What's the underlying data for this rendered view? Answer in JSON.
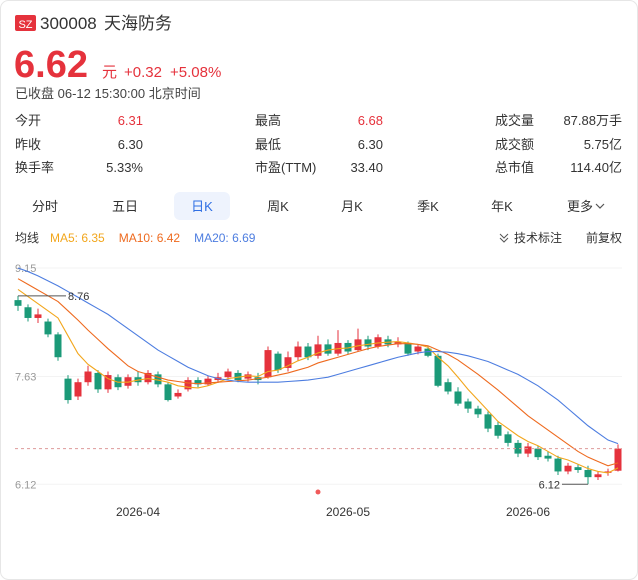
{
  "header": {
    "badge": "SZ",
    "code": "300008",
    "name": "天海防务",
    "price": "6.62",
    "unit": "元",
    "change": "+0.32",
    "change_pct": "+5.08%",
    "status": "已收盘 06-12 15:30:00 北京时间"
  },
  "stats": [
    [
      [
        "今开",
        "6.31"
      ],
      [
        "最高",
        "6.68"
      ],
      [
        "成交量",
        "87.88万手"
      ]
    ],
    [
      [
        "昨收",
        "6.30"
      ],
      [
        "最低",
        "6.30"
      ],
      [
        "成交额",
        "5.75亿"
      ]
    ],
    [
      [
        "换手率",
        "5.33%"
      ],
      [
        "市盈(TTM)",
        "33.40"
      ],
      [
        "总市值",
        "114.40亿"
      ]
    ]
  ],
  "tabs": [
    "分时",
    "五日",
    "日K",
    "周K",
    "月K",
    "季K",
    "年K",
    "更多"
  ],
  "ma_bar": {
    "label": "均线",
    "tech": "技术标注",
    "adjust": "前复权"
  },
  "chart_data": {
    "type": "candlestick",
    "categories": [
      null,
      null,
      null,
      null,
      null,
      null,
      null,
      null,
      null,
      null,
      null,
      null,
      "2026-04",
      null,
      null,
      null,
      null,
      null,
      null,
      null,
      null,
      null,
      null,
      null,
      null,
      null,
      null,
      null,
      null,
      null,
      null,
      null,
      null,
      "2026-05",
      null,
      null,
      null,
      null,
      null,
      null,
      null,
      null,
      null,
      null,
      null,
      null,
      null,
      null,
      null,
      null,
      null,
      "2026-06",
      null,
      null,
      null,
      null,
      null,
      null,
      null,
      null,
      null
    ],
    "open": [
      8.7,
      8.6,
      8.45,
      8.4,
      8.22,
      7.6,
      7.35,
      7.55,
      7.68,
      7.45,
      7.62,
      7.5,
      7.62,
      7.55,
      7.66,
      7.52,
      7.35,
      7.45,
      7.58,
      7.52,
      7.58,
      7.62,
      7.68,
      7.6,
      7.62,
      7.62,
      7.95,
      7.75,
      7.9,
      8.05,
      7.92,
      8.08,
      7.95,
      8.1,
      8.0,
      8.15,
      8.05,
      8.15,
      8.08,
      8.1,
      7.98,
      8.02,
      7.92,
      7.55,
      7.42,
      7.28,
      7.18,
      7.1,
      6.95,
      6.82,
      6.7,
      6.55,
      6.62,
      6.52,
      6.48,
      6.3,
      6.36,
      6.32,
      6.22,
      6.28,
      6.31
    ],
    "close": [
      8.62,
      8.45,
      8.5,
      8.22,
      7.9,
      7.3,
      7.55,
      7.7,
      7.45,
      7.65,
      7.48,
      7.62,
      7.55,
      7.68,
      7.52,
      7.3,
      7.4,
      7.58,
      7.52,
      7.6,
      7.62,
      7.7,
      7.58,
      7.66,
      7.58,
      8.0,
      7.72,
      7.9,
      8.05,
      7.9,
      8.08,
      7.95,
      8.1,
      7.98,
      8.15,
      8.05,
      8.18,
      8.08,
      8.12,
      7.95,
      8.05,
      7.92,
      7.5,
      7.42,
      7.25,
      7.18,
      7.1,
      6.9,
      6.8,
      6.7,
      6.55,
      6.65,
      6.5,
      6.48,
      6.3,
      6.38,
      6.32,
      6.22,
      6.26,
      6.3,
      6.62
    ],
    "high": [
      8.76,
      8.64,
      8.58,
      8.44,
      8.25,
      7.65,
      7.6,
      7.78,
      7.72,
      7.7,
      7.66,
      7.66,
      7.7,
      7.72,
      7.7,
      7.55,
      7.45,
      7.62,
      7.62,
      7.64,
      7.68,
      7.74,
      7.72,
      7.7,
      7.68,
      8.05,
      7.98,
      7.98,
      8.12,
      8.1,
      8.2,
      8.15,
      8.28,
      8.14,
      8.3,
      8.2,
      8.22,
      8.2,
      8.18,
      8.12,
      8.08,
      8.06,
      7.95,
      7.6,
      7.48,
      7.32,
      7.22,
      7.14,
      7.0,
      6.86,
      6.74,
      6.7,
      6.66,
      6.58,
      6.52,
      6.42,
      6.4,
      6.38,
      6.3,
      6.34,
      6.68
    ],
    "low": [
      8.55,
      8.4,
      8.38,
      8.18,
      7.85,
      7.25,
      7.3,
      7.5,
      7.4,
      7.4,
      7.44,
      7.46,
      7.5,
      7.52,
      7.48,
      7.28,
      7.32,
      7.42,
      7.48,
      7.5,
      7.54,
      7.58,
      7.55,
      7.56,
      7.52,
      7.6,
      7.68,
      7.7,
      7.85,
      7.86,
      7.88,
      7.92,
      7.92,
      7.94,
      7.98,
      8.0,
      8.02,
      8.04,
      8.04,
      7.92,
      7.94,
      7.9,
      7.48,
      7.38,
      7.22,
      7.12,
      7.05,
      6.85,
      6.76,
      6.65,
      6.5,
      6.5,
      6.46,
      6.44,
      6.25,
      6.26,
      6.28,
      6.12,
      6.18,
      6.24,
      6.3
    ],
    "up_color": "#e5323c",
    "down_color": "#1b9a78",
    "series": [
      {
        "name": "MA5: 6.35",
        "color": "#f2a61c",
        "values": [
          8.85,
          8.75,
          8.65,
          8.55,
          8.45,
          8.2,
          7.95,
          7.8,
          7.7,
          7.6,
          7.55,
          7.55,
          7.58,
          7.6,
          7.58,
          7.55,
          7.5,
          7.48,
          7.47,
          7.5,
          7.55,
          7.6,
          7.62,
          7.64,
          7.63,
          7.7,
          7.72,
          7.78,
          7.85,
          7.9,
          7.96,
          8.0,
          8.02,
          8.03,
          8.06,
          8.08,
          8.1,
          8.11,
          8.12,
          8.1,
          8.08,
          8.04,
          7.9,
          7.78,
          7.62,
          7.45,
          7.3,
          7.15,
          7.0,
          6.9,
          6.8,
          6.72,
          6.66,
          6.58,
          6.5,
          6.46,
          6.4,
          6.34,
          6.3,
          6.28,
          6.35
        ]
      },
      {
        "name": "MA10: 6.42",
        "color": "#ee6a1f",
        "values": [
          9.0,
          8.92,
          8.84,
          8.76,
          8.68,
          8.55,
          8.42,
          8.28,
          8.15,
          8.02,
          7.9,
          7.78,
          7.7,
          7.66,
          7.62,
          7.58,
          7.56,
          7.54,
          7.53,
          7.54,
          7.55,
          7.56,
          7.57,
          7.58,
          7.6,
          7.62,
          7.65,
          7.68,
          7.72,
          7.76,
          7.82,
          7.86,
          7.9,
          7.94,
          7.98,
          8.02,
          8.05,
          8.07,
          8.09,
          8.09,
          8.08,
          8.06,
          8.0,
          7.94,
          7.86,
          7.76,
          7.66,
          7.55,
          7.44,
          7.32,
          7.2,
          7.08,
          6.98,
          6.88,
          6.78,
          6.68,
          6.58,
          6.5,
          6.44,
          6.38,
          6.42
        ]
      },
      {
        "name": "MA20: 6.69",
        "color": "#4d7de0",
        "values": [
          9.15,
          9.1,
          9.04,
          8.97,
          8.9,
          8.82,
          8.74,
          8.66,
          8.58,
          8.5,
          8.4,
          8.3,
          8.2,
          8.1,
          8.0,
          7.92,
          7.84,
          7.76,
          7.7,
          7.64,
          7.6,
          7.58,
          7.56,
          7.55,
          7.55,
          7.55,
          7.55,
          7.56,
          7.57,
          7.58,
          7.6,
          7.62,
          7.66,
          7.7,
          7.74,
          7.78,
          7.82,
          7.86,
          7.9,
          7.93,
          7.96,
          7.98,
          7.98,
          7.97,
          7.95,
          7.92,
          7.88,
          7.84,
          7.78,
          7.72,
          7.66,
          7.58,
          7.5,
          7.4,
          7.3,
          7.18,
          7.06,
          6.94,
          6.84,
          6.74,
          6.69
        ]
      }
    ],
    "ylim": [
      5.97,
      9.29
    ],
    "yticks": [
      9.15,
      7.63,
      6.12
    ],
    "max_label": "8.76",
    "min_label": "6.12"
  }
}
